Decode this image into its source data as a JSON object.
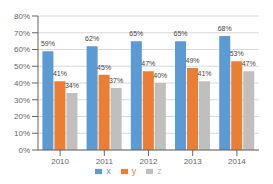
{
  "chart_data": {
    "type": "bar",
    "categories": [
      "2010",
      "2011",
      "2012",
      "2013",
      "2014"
    ],
    "series": [
      {
        "name": "x",
        "color": "#5B9BD5",
        "values": [
          59,
          62,
          65,
          65,
          68
        ],
        "value_labels": [
          "59%",
          "62%",
          "65%",
          "65%",
          "68%"
        ]
      },
      {
        "name": "y",
        "color": "#ED7D31",
        "values": [
          41,
          45,
          47,
          49,
          53
        ],
        "value_labels": [
          "41%",
          "45%",
          "47%",
          "49%",
          "53%"
        ]
      },
      {
        "name": "z",
        "color": "#BFBFBF",
        "values": [
          34,
          37,
          40,
          41,
          47
        ],
        "value_labels": [
          "34%",
          "37%",
          "40%",
          "41%",
          "47%"
        ]
      }
    ],
    "ylim": [
      0,
      80
    ],
    "yticks": [
      {
        "value": 0,
        "label": "0%"
      },
      {
        "value": 10,
        "label": "10%"
      },
      {
        "value": 20,
        "label": "20%"
      },
      {
        "value": 30,
        "label": "30%"
      },
      {
        "value": 40,
        "label": "40%"
      },
      {
        "value": 50,
        "label": "50%"
      },
      {
        "value": 60,
        "label": "60%"
      },
      {
        "value": 70,
        "label": "70%"
      },
      {
        "value": 80,
        "label": "80%"
      }
    ],
    "grid": true,
    "data_labels": true,
    "legend": "bottom"
  }
}
